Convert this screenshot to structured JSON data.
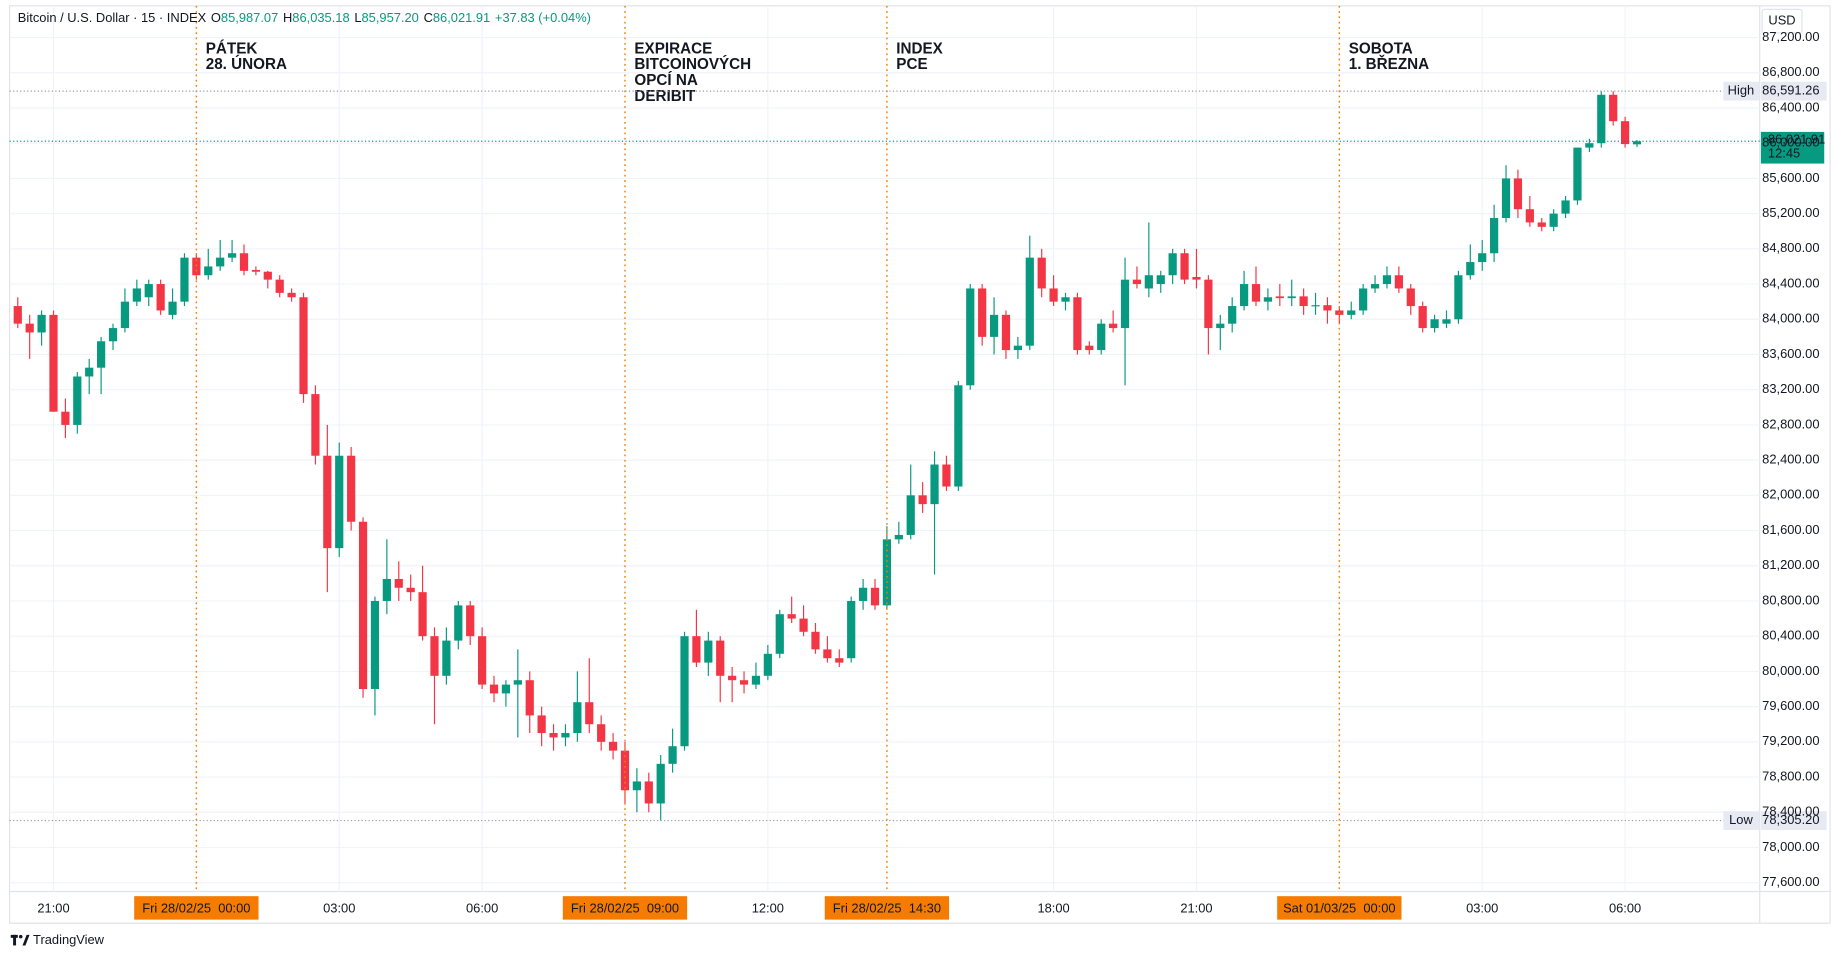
{
  "header": {
    "symbol": "Bitcoin / U.S. Dollar · 15 · INDEX",
    "fields": [
      {
        "key": "O",
        "value": 85987.07,
        "label": "85,987.07"
      },
      {
        "key": "H",
        "value": 86035.18,
        "label": "86,035.18"
      },
      {
        "key": "L",
        "value": 85957.2,
        "label": "85,957.20"
      },
      {
        "key": "C",
        "value": 86021.91,
        "label": "86,021.91"
      }
    ],
    "change": {
      "value": 37.83,
      "label": "+37.83 (+0.04%)"
    }
  },
  "currency": "USD",
  "brand": "TradingView",
  "chart_data": {
    "type": "candlestick",
    "up_color": "#089981",
    "down_color": "#f23645",
    "ylim": [
      77500,
      87560
    ],
    "yticks": [
      {
        "value": 77600,
        "label": "77,600.00"
      },
      {
        "value": 78000,
        "label": "78,000.00"
      },
      {
        "value": 78400,
        "label": "78,400.00"
      },
      {
        "value": 78800,
        "label": "78,800.00"
      },
      {
        "value": 79200,
        "label": "79,200.00"
      },
      {
        "value": 79600,
        "label": "79,600.00"
      },
      {
        "value": 80000,
        "label": "80,000.00"
      },
      {
        "value": 80400,
        "label": "80,400.00"
      },
      {
        "value": 80800,
        "label": "80,800.00"
      },
      {
        "value": 81200,
        "label": "81,200.00"
      },
      {
        "value": 81600,
        "label": "81,600.00"
      },
      {
        "value": 82000,
        "label": "82,000.00"
      },
      {
        "value": 82400,
        "label": "82,400.00"
      },
      {
        "value": 82800,
        "label": "82,800.00"
      },
      {
        "value": 83200,
        "label": "83,200.00"
      },
      {
        "value": 83600,
        "label": "83,600.00"
      },
      {
        "value": 84000,
        "label": "84,000.00"
      },
      {
        "value": 84400,
        "label": "84,400.00"
      },
      {
        "value": 84800,
        "label": "84,800.00"
      },
      {
        "value": 85200,
        "label": "85,200.00"
      },
      {
        "value": 85600,
        "label": "85,600.00"
      },
      {
        "value": 86000,
        "label": "86,000.00"
      },
      {
        "value": 86400,
        "label": "86,400.00"
      },
      {
        "value": 86800,
        "label": "86,800.00"
      },
      {
        "value": 87200,
        "label": "87,200.00"
      }
    ],
    "grid": true,
    "categories": [
      null,
      null,
      null,
      "21:00",
      null,
      null,
      null,
      null,
      null,
      null,
      null,
      null,
      null,
      null,
      null,
      "Fri 28/02/25  00:00",
      null,
      null,
      null,
      null,
      null,
      null,
      null,
      null,
      null,
      null,
      null,
      "03:00",
      null,
      null,
      null,
      null,
      null,
      null,
      null,
      null,
      null,
      null,
      null,
      "06:00",
      null,
      null,
      null,
      null,
      null,
      null,
      null,
      null,
      null,
      null,
      null,
      "Fri 28/02/25  09:00",
      null,
      null,
      null,
      null,
      null,
      null,
      null,
      null,
      null,
      null,
      null,
      "12:00",
      null,
      null,
      null,
      null,
      null,
      null,
      null,
      null,
      null,
      "Fri 28/02/25  14:30",
      null,
      null,
      null,
      null,
      null,
      null,
      null,
      null,
      null,
      null,
      null,
      null,
      null,
      "18:00",
      null,
      null,
      null,
      null,
      null,
      null,
      null,
      null,
      null,
      null,
      null,
      "21:00",
      null,
      null,
      null,
      null,
      null,
      null,
      null,
      null,
      null,
      null,
      null,
      "Sat 01/03/25  00:00",
      null,
      null,
      null,
      null,
      null,
      null,
      null,
      null,
      null,
      null,
      null,
      "03:00",
      null,
      null,
      null,
      null,
      null,
      null,
      null,
      null,
      null,
      null,
      null,
      "06:00",
      null
    ],
    "ohlc": [
      [
        84150,
        84250,
        83900,
        83950
      ],
      [
        83950,
        84050,
        83550,
        83850
      ],
      [
        83850,
        84100,
        83700,
        84050
      ],
      [
        84050,
        84100,
        82950,
        82950
      ],
      [
        82950,
        83100,
        82650,
        82800
      ],
      [
        82800,
        83400,
        82700,
        83350
      ],
      [
        83350,
        83550,
        83150,
        83450
      ],
      [
        83450,
        83800,
        83150,
        83750
      ],
      [
        83750,
        83950,
        83650,
        83900
      ],
      [
        83900,
        84350,
        83850,
        84200
      ],
      [
        84200,
        84450,
        84150,
        84350
      ],
      [
        84250,
        84450,
        84150,
        84400
      ],
      [
        84400,
        84450,
        84050,
        84100
      ],
      [
        84050,
        84350,
        84000,
        84200
      ],
      [
        84200,
        84750,
        84150,
        84700
      ],
      [
        84700,
        84750,
        84450,
        84500
      ],
      [
        84500,
        84800,
        84450,
        84600
      ],
      [
        84600,
        84900,
        84550,
        84700
      ],
      [
        84700,
        84900,
        84650,
        84750
      ],
      [
        84750,
        84850,
        84500,
        84550
      ],
      [
        84560,
        84600,
        84500,
        84540
      ],
      [
        84540,
        84550,
        84350,
        84450
      ],
      [
        84450,
        84500,
        84250,
        84300
      ],
      [
        84300,
        84350,
        84200,
        84250
      ],
      [
        84250,
        84300,
        83050,
        83150
      ],
      [
        83150,
        83250,
        82350,
        82450
      ],
      [
        82450,
        82800,
        80900,
        81400
      ],
      [
        81400,
        82600,
        81300,
        82450
      ],
      [
        82450,
        82550,
        81600,
        81700
      ],
      [
        81700,
        81750,
        79700,
        79800
      ],
      [
        79800,
        80850,
        79500,
        80800
      ],
      [
        80800,
        81500,
        80650,
        81050
      ],
      [
        81050,
        81250,
        80800,
        80950
      ],
      [
        80950,
        81100,
        80800,
        80900
      ],
      [
        80900,
        81200,
        80350,
        80400
      ],
      [
        80400,
        80500,
        79400,
        79950
      ],
      [
        79950,
        80500,
        79850,
        80350
      ],
      [
        80350,
        80800,
        80250,
        80750
      ],
      [
        80750,
        80800,
        80300,
        80400
      ],
      [
        80400,
        80500,
        79800,
        79850
      ],
      [
        79850,
        79950,
        79650,
        79750
      ],
      [
        79750,
        79900,
        79600,
        79850
      ],
      [
        79850,
        80250,
        79250,
        79900
      ],
      [
        79900,
        80000,
        79300,
        79500
      ],
      [
        79500,
        79600,
        79150,
        79300
      ],
      [
        79300,
        79400,
        79100,
        79250
      ],
      [
        79250,
        79400,
        79150,
        79300
      ],
      [
        79300,
        80000,
        79200,
        79650
      ],
      [
        79650,
        80150,
        79300,
        79400
      ],
      [
        79400,
        79500,
        79100,
        79200
      ],
      [
        79200,
        79300,
        79000,
        79100
      ],
      [
        79100,
        79200,
        78500,
        78650
      ],
      [
        78650,
        78900,
        78400,
        78750
      ],
      [
        78750,
        78850,
        78400,
        78500
      ],
      [
        78500,
        79050,
        78305.2,
        78950
      ],
      [
        78950,
        79350,
        78850,
        79150
      ],
      [
        79150,
        80450,
        79100,
        80400
      ],
      [
        80400,
        80700,
        80050,
        80100
      ],
      [
        80100,
        80450,
        79950,
        80350
      ],
      [
        80350,
        80400,
        79650,
        79950
      ],
      [
        79950,
        80050,
        79650,
        79900
      ],
      [
        79900,
        80000,
        79750,
        79850
      ],
      [
        79850,
        80100,
        79800,
        79950
      ],
      [
        79950,
        80300,
        79900,
        80200
      ],
      [
        80200,
        80700,
        80150,
        80650
      ],
      [
        80650,
        80850,
        80550,
        80600
      ],
      [
        80600,
        80750,
        80400,
        80450
      ],
      [
        80450,
        80550,
        80200,
        80250
      ],
      [
        80250,
        80400,
        80100,
        80150
      ],
      [
        80150,
        80250,
        80050,
        80100
      ],
      [
        80150,
        80850,
        80100,
        80800
      ],
      [
        80800,
        81050,
        80700,
        80950
      ],
      [
        80950,
        81050,
        80700,
        80750
      ],
      [
        80750,
        81650,
        80700,
        81500
      ],
      [
        81500,
        81700,
        81450,
        81550
      ],
      [
        81550,
        82350,
        81500,
        82000
      ],
      [
        82000,
        82150,
        81800,
        81900
      ],
      [
        81900,
        82500,
        81100,
        82350
      ],
      [
        82350,
        82450,
        82050,
        82100
      ],
      [
        82100,
        83300,
        82050,
        83250
      ],
      [
        83250,
        84400,
        83200,
        84350
      ],
      [
        84350,
        84400,
        83700,
        83800
      ],
      [
        83800,
        84250,
        83600,
        84050
      ],
      [
        84050,
        84100,
        83550,
        83650
      ],
      [
        83650,
        83800,
        83550,
        83700
      ],
      [
        83700,
        84950,
        83650,
        84700
      ],
      [
        84700,
        84800,
        84250,
        84350
      ],
      [
        84350,
        84500,
        84150,
        84200
      ],
      [
        84200,
        84300,
        84100,
        84250
      ],
      [
        84250,
        84300,
        83600,
        83650
      ],
      [
        83700,
        83750,
        83600,
        83650
      ],
      [
        83650,
        84000,
        83600,
        83950
      ],
      [
        83950,
        84100,
        83850,
        83900
      ],
      [
        83900,
        84700,
        83250,
        84450
      ],
      [
        84450,
        84600,
        84350,
        84400
      ],
      [
        84350,
        85100,
        84250,
        84500
      ],
      [
        84400,
        84550,
        84300,
        84500
      ],
      [
        84500,
        84800,
        84400,
        84750
      ],
      [
        84750,
        84800,
        84400,
        84450
      ],
      [
        84480,
        84800,
        84350,
        84450
      ],
      [
        84450,
        84500,
        83600,
        83900
      ],
      [
        83900,
        84050,
        83650,
        83950
      ],
      [
        83950,
        84250,
        83850,
        84150
      ],
      [
        84150,
        84550,
        84100,
        84400
      ],
      [
        84400,
        84600,
        84150,
        84200
      ],
      [
        84200,
        84350,
        84100,
        84250
      ],
      [
        84260,
        84400,
        84150,
        84240
      ],
      [
        84240,
        84450,
        84150,
        84260
      ],
      [
        84260,
        84350,
        84050,
        84150
      ],
      [
        84150,
        84300,
        84050,
        84160
      ],
      [
        84160,
        84250,
        83950,
        84100
      ],
      [
        84100,
        84150,
        83950,
        84050
      ],
      [
        84050,
        84200,
        84000,
        84100
      ],
      [
        84100,
        84400,
        84050,
        84350
      ],
      [
        84350,
        84500,
        84300,
        84400
      ],
      [
        84400,
        84600,
        84350,
        84500
      ],
      [
        84500,
        84600,
        84300,
        84350
      ],
      [
        84350,
        84400,
        84050,
        84150
      ],
      [
        84150,
        84200,
        83850,
        83900
      ],
      [
        83900,
        84050,
        83850,
        84000
      ],
      [
        83950,
        84100,
        83900,
        84000
      ],
      [
        84000,
        84550,
        83950,
        84500
      ],
      [
        84500,
        84850,
        84450,
        84650
      ],
      [
        84650,
        84900,
        84550,
        84750
      ],
      [
        84750,
        85300,
        84650,
        85150
      ],
      [
        85150,
        85750,
        85100,
        85600
      ],
      [
        85600,
        85700,
        85150,
        85250
      ],
      [
        85250,
        85400,
        85050,
        85100
      ],
      [
        85100,
        85150,
        85000,
        85050
      ],
      [
        85050,
        85250,
        85000,
        85200
      ],
      [
        85200,
        85400,
        85150,
        85350
      ],
      [
        85350,
        85950,
        85300,
        85950
      ],
      [
        85950,
        86050,
        85900,
        86000
      ],
      [
        86000,
        86591.26,
        85950,
        86550
      ],
      [
        86550,
        86590,
        86200,
        86250
      ],
      [
        86250,
        86300,
        85950,
        85990
      ],
      [
        85987.07,
        86035.18,
        85957.2,
        86021.91
      ]
    ],
    "events": [
      {
        "at": "Fri 28/02/25  00:00",
        "lines": [
          "PÁTEK",
          "28. ÚNORA"
        ]
      },
      {
        "at": "Fri 28/02/25  09:00",
        "lines": [
          "EXPIRACE",
          "BITCOINOVÝCH",
          "OPCÍ NA",
          "DERIBIT"
        ]
      },
      {
        "at": "Fri 28/02/25  14:30",
        "lines": [
          "INDEX",
          "PCE"
        ]
      },
      {
        "at": "Sat 01/03/25  00:00",
        "lines": [
          "SOBOTA",
          "1. BŘEZNA"
        ]
      }
    ],
    "high": {
      "name": "High",
      "value": 86591.26,
      "label": "86,591.26"
    },
    "low": {
      "name": "Low",
      "value": 78305.2,
      "label": "78,305.20"
    },
    "last": {
      "value": 86021.91,
      "label": "86,021.91",
      "countdown": "12:45"
    }
  }
}
